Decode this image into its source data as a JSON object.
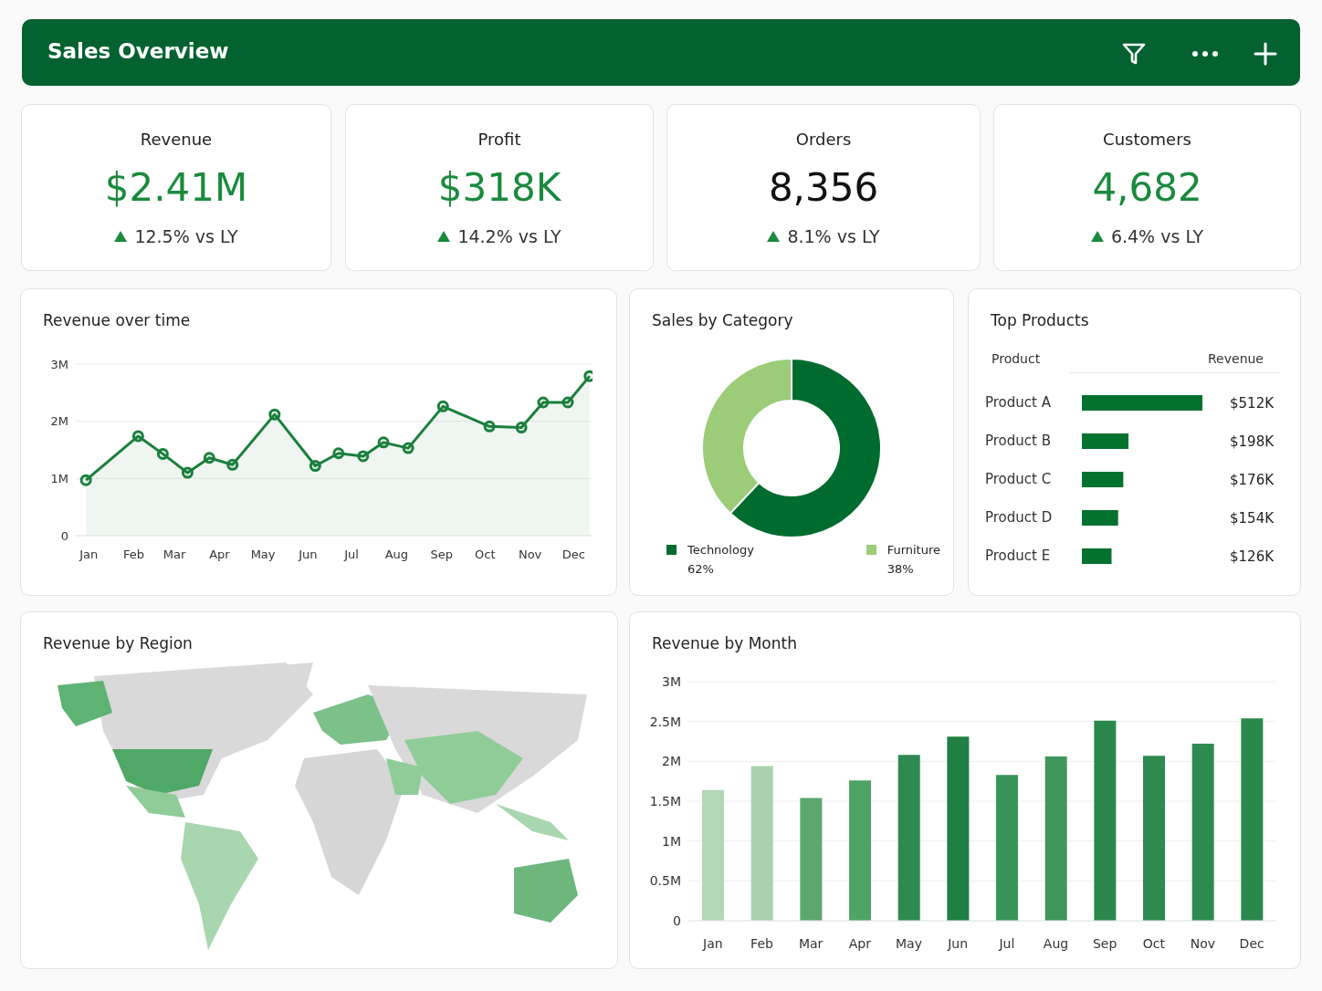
{
  "chart_data": [
    {
      "type": "other",
      "title": "Sales Overview",
      "color": "#03622f"
    },
    {
      "type": "other",
      "title": "Revenue",
      "annotations": [
        "$2.41M",
        "12.5% vs LY"
      ],
      "color": "#1a8a3e"
    },
    {
      "type": "other",
      "title": "Profit",
      "annotations": [
        "$318K",
        "14.2% vs LY"
      ],
      "color": "#1a8a3e"
    },
    {
      "type": "other",
      "title": "Orders",
      "annotations": [
        "8,356",
        "8.1% vs LY"
      ],
      "color": "#111111"
    },
    {
      "type": "other",
      "title": "Customers",
      "annotations": [
        "4,682",
        "6.4% vs LY"
      ],
      "color": "#1a8a3e"
    },
    {
      "type": "area",
      "title": "Revenue over time",
      "color": "#1a7f3c",
      "marker": "circle",
      "line_style": "solid",
      "grid": "y",
      "x": [
        "--01-13",
        "--02-18",
        "--03-07",
        "--03-24",
        "--04-08",
        "--04-24",
        "--05-23",
        "--06-20",
        "--07-06",
        "--07-23",
        "--08-06",
        "--08-23",
        "--09-16",
        "--10-18",
        "--11-09",
        "--11-24",
        "--12-11",
        "--12-26"
      ],
      "values": [
        0.97,
        1.74,
        1.43,
        1.1,
        1.36,
        1.24,
        2.12,
        1.22,
        1.44,
        1.39,
        1.63,
        1.53,
        2.26,
        1.91,
        1.89,
        2.33,
        2.33,
        2.79
      ],
      "xlim": [
        "--01-06",
        "--12-28"
      ],
      "xticks": [
        {
          "value": "--01-15",
          "label": "Jan"
        },
        {
          "value": "--02-15",
          "label": "Feb"
        },
        {
          "value": "--03-15",
          "label": "Mar"
        },
        {
          "value": "--04-15",
          "label": "Apr"
        },
        {
          "value": "--05-15",
          "label": "May"
        },
        {
          "value": "--06-15",
          "label": "Jun"
        },
        {
          "value": "--07-15",
          "label": "Jul"
        },
        {
          "value": "--08-15",
          "label": "Aug"
        },
        {
          "value": "--09-15",
          "label": "Sep"
        },
        {
          "value": "--10-15",
          "label": "Oct"
        },
        {
          "value": "--11-15",
          "label": "Nov"
        },
        {
          "value": "--12-15",
          "label": "Dec"
        }
      ],
      "ylim": [
        0,
        3
      ],
      "yticks": [
        0,
        {
          "value": 1,
          "label": "1M"
        },
        {
          "value": 2,
          "label": "2M"
        },
        {
          "value": 3,
          "label": "3M"
        }
      ]
    },
    {
      "type": "donut",
      "title": "Sales by Category",
      "categories": [
        "Technology",
        "Furniture"
      ],
      "values": [
        62,
        38
      ],
      "colors": [
        "#006b2e",
        "#9ccc78"
      ],
      "value_labels": [
        "62%",
        "38%"
      ],
      "legend": "bottom"
    },
    {
      "type": "bar",
      "title": "Top Products",
      "orientation": "horizontal",
      "categories": [
        "Product A",
        "Product B",
        "Product C",
        "Product D",
        "Product E"
      ],
      "values": [
        512,
        198,
        176,
        154,
        126
      ],
      "color": "#03722f",
      "value_labels": [
        "$512K",
        "$198K",
        "$176K",
        "$154K",
        "$126K"
      ],
      "annotations": [
        "Product",
        "Revenue"
      ]
    },
    {
      "type": "other",
      "title": "Revenue by Region"
    },
    {
      "type": "bar",
      "title": "Revenue by Month",
      "categories": [
        "Jan",
        "Feb",
        "Mar",
        "Apr",
        "May",
        "Jun",
        "Jul",
        "Aug",
        "Sep",
        "Oct",
        "Nov",
        "Dec"
      ],
      "values": [
        1.64,
        1.94,
        1.54,
        1.76,
        2.08,
        2.31,
        1.83,
        2.06,
        2.51,
        2.07,
        2.22,
        2.54
      ],
      "colors": [
        "#b3d8b8",
        "#a8d2ae",
        "#5aa86e",
        "#50a366",
        "#2e8a50",
        "#1f7f44",
        "#38955a",
        "#3f975c",
        "#2a884c",
        "#2e8a50",
        "#2e8a50",
        "#2a884c"
      ],
      "grid": "y",
      "ylim": [
        0,
        3
      ],
      "yticks": [
        0,
        {
          "value": 0.5,
          "label": "0.5M"
        },
        {
          "value": 1,
          "label": "1M"
        },
        {
          "value": 1.5,
          "label": "1.5M"
        },
        {
          "value": 2,
          "label": "2M"
        },
        {
          "value": 2.5,
          "label": "2.5M"
        },
        {
          "value": 3,
          "label": "3M"
        }
      ]
    }
  ]
}
